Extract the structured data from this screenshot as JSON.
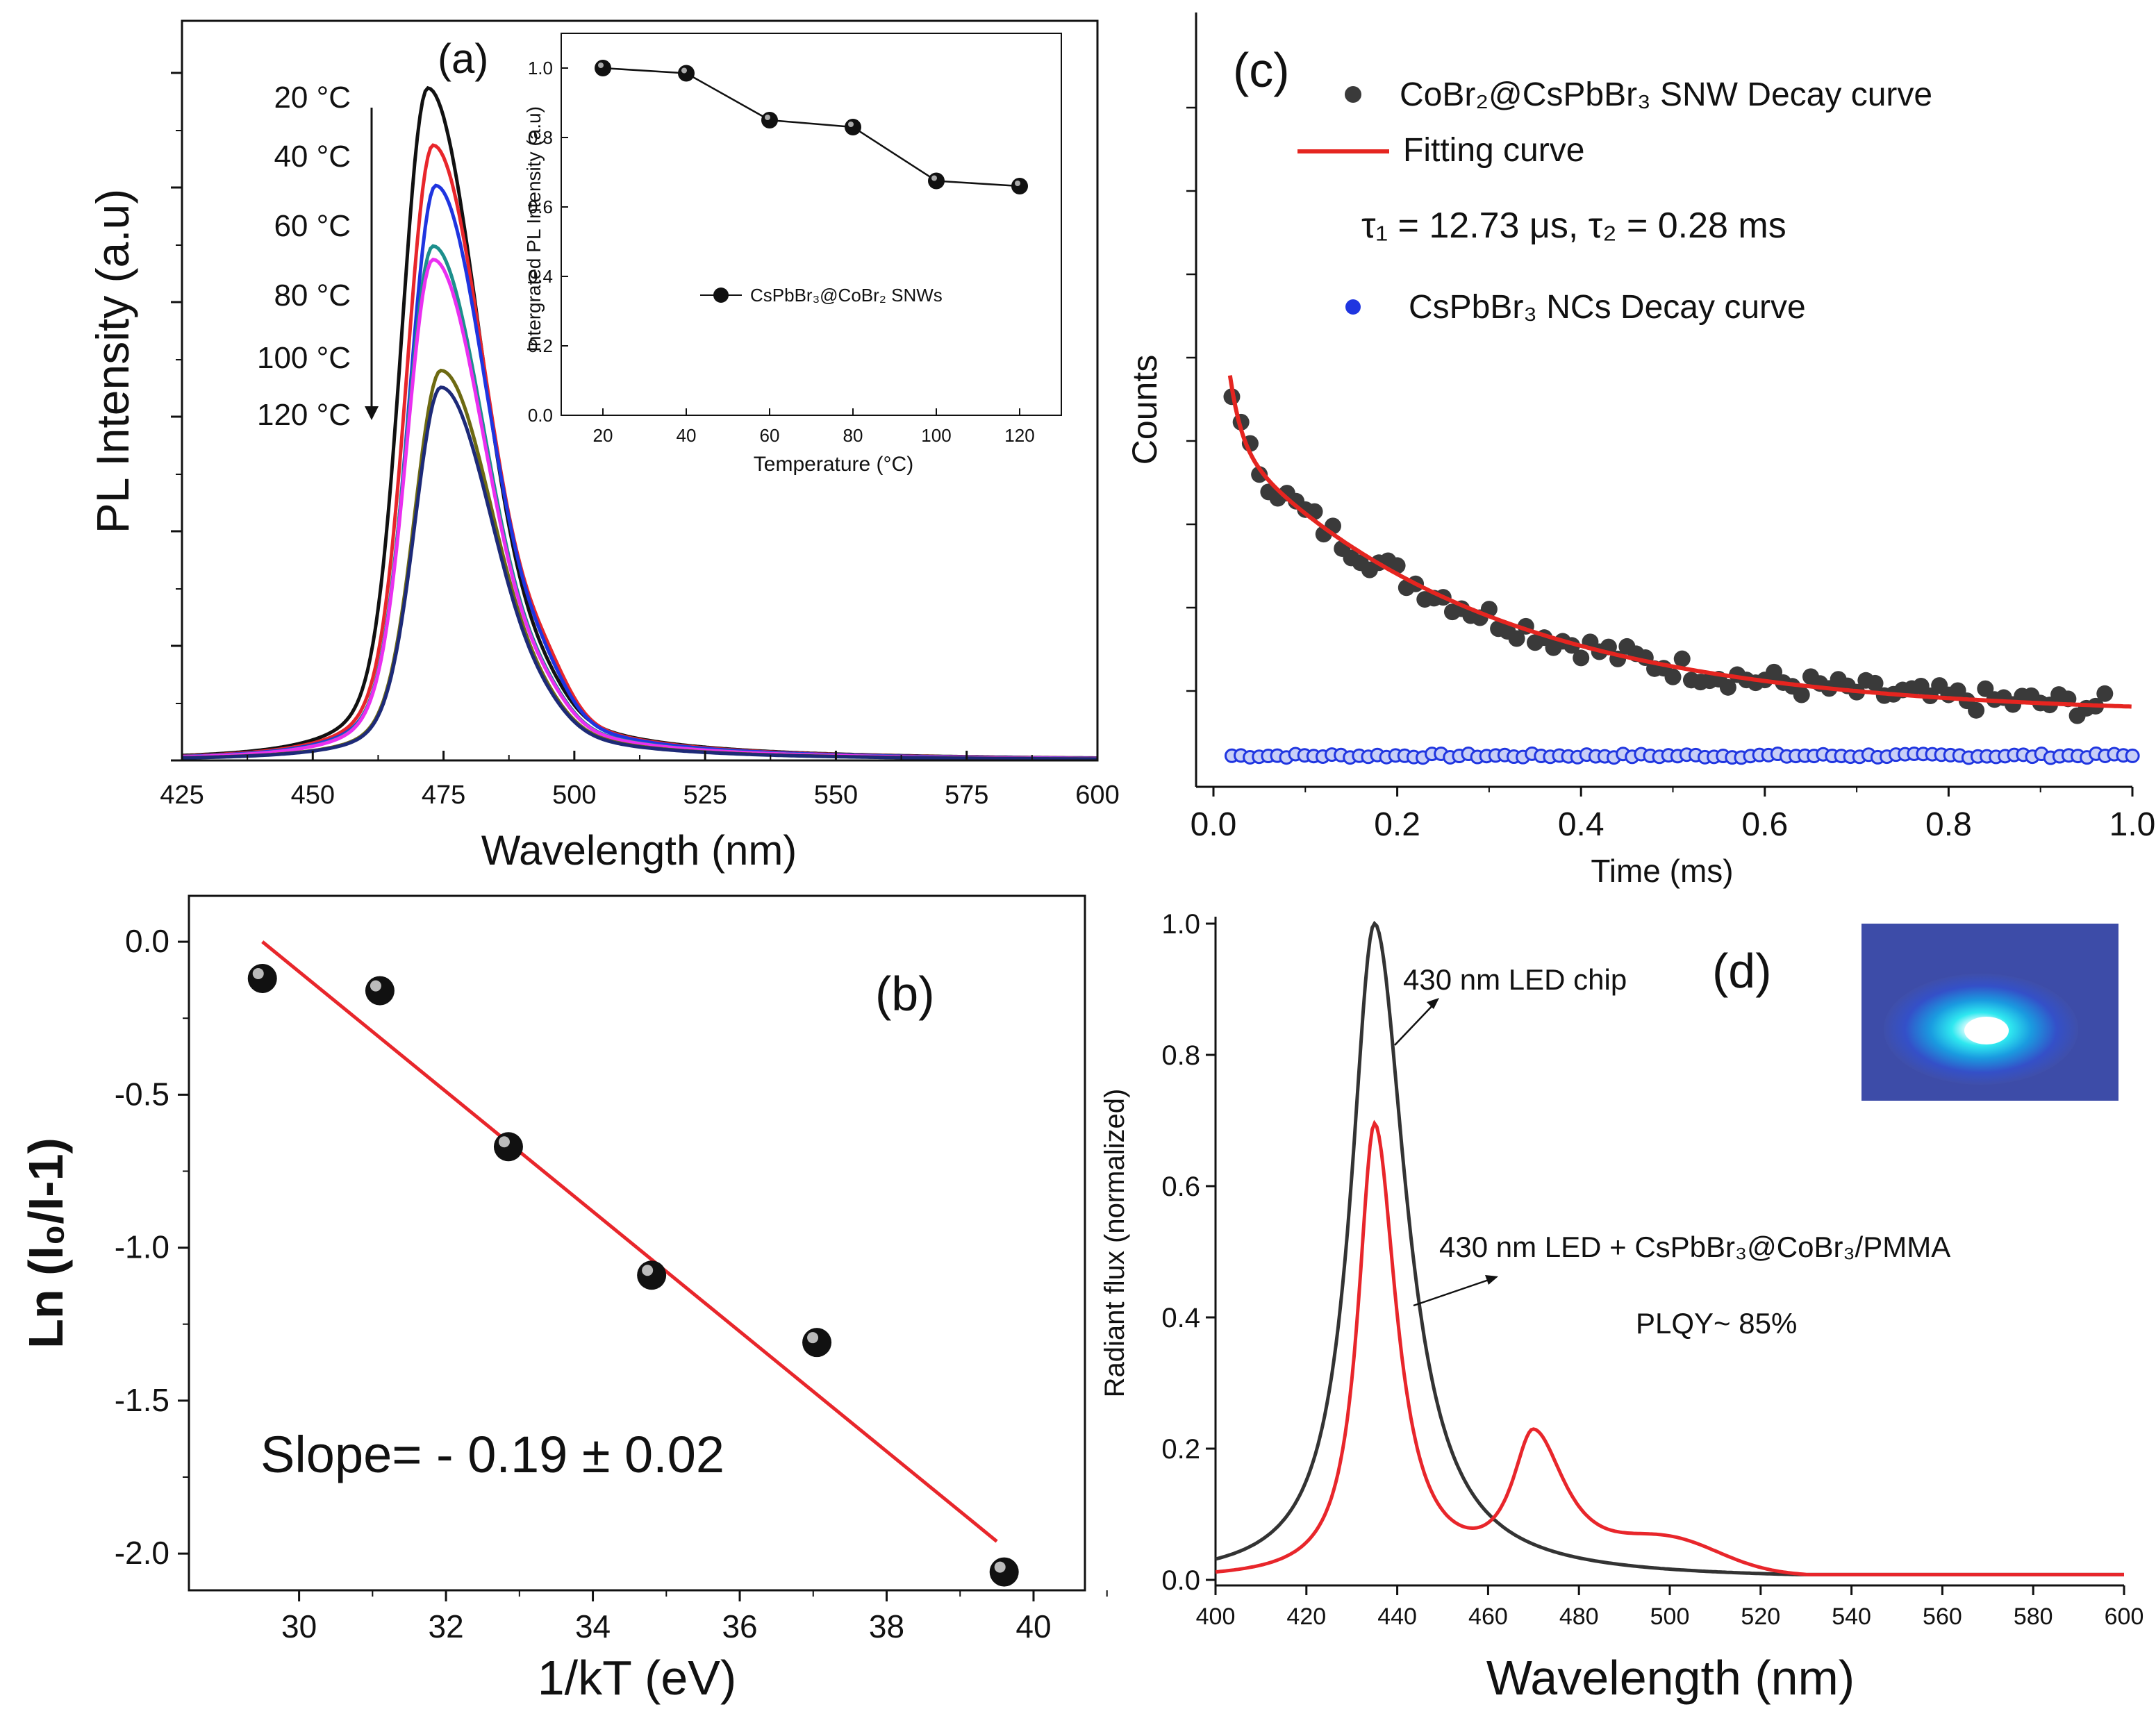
{
  "colors": {
    "black": "#111111",
    "red": "#e8262b",
    "blue": "#1f35e0",
    "cyan": "#1c8f8c",
    "magenta": "#ea2ff0",
    "olive": "#6d6a12",
    "navy": "#1d2a78",
    "gray": "#3a3a3a",
    "fit": "#e52520",
    "led": "#333333"
  },
  "chart_data": [
    {
      "id": "a",
      "type": "line",
      "panel_label": "(a)",
      "xlabel": "Wavelength (nm)",
      "ylabel": "PL Intensity (a.u)",
      "xlim": [
        425,
        600
      ],
      "ylim": [
        0,
        1.1
      ],
      "xticks": [
        "425",
        "450",
        "475",
        "500",
        "525",
        "550",
        "575",
        "600"
      ],
      "legend_labels": [
        "20 °C",
        "40 °C",
        "60 °C",
        "80 °C",
        "100 °C",
        "120 °C"
      ],
      "series": [
        {
          "name": "20 °C",
          "color": "black",
          "peak": 472,
          "amp": 1.0,
          "shoulder": 0.02
        },
        {
          "name": "40 °C",
          "color": "red",
          "peak": 473,
          "amp": 0.915,
          "shoulder": 0.04
        },
        {
          "name": "60 °C",
          "color": "blue",
          "peak": 473.5,
          "amp": 0.855,
          "shoulder": 0.03
        },
        {
          "name": "80 °C (a)",
          "color": "cyan",
          "peak": 473,
          "amp": 0.765,
          "shoulder": 0.02
        },
        {
          "name": "80 °C (b)",
          "color": "magenta",
          "peak": 473,
          "amp": 0.745,
          "shoulder": 0.02
        },
        {
          "name": "100 °C",
          "color": "olive",
          "peak": 474.5,
          "amp": 0.58,
          "shoulder": 0.01
        },
        {
          "name": "120 °C",
          "color": "navy",
          "peak": 474.5,
          "amp": 0.555,
          "shoulder": 0.01
        }
      ],
      "inset": {
        "type": "line",
        "xlabel": "Temperature (°C)",
        "ylabel": "Intergrated PL Intensity (a.u)",
        "legend": "CsPbBr₃@CoBr₂ SNWs",
        "xlim": [
          10,
          130
        ],
        "ylim": [
          0,
          1.1
        ],
        "xticks": [
          "20",
          "40",
          "60",
          "80",
          "100",
          "120"
        ],
        "yticks": [
          "0.0",
          "0.2",
          "0.4",
          "0.6",
          "0.8",
          "1.0"
        ],
        "x": [
          20,
          40,
          60,
          80,
          100,
          120
        ],
        "y": [
          1.0,
          0.985,
          0.85,
          0.83,
          0.675,
          0.66
        ]
      }
    },
    {
      "id": "b",
      "type": "scatter",
      "panel_label": "(b)",
      "xlabel": "1/kT (eV)",
      "ylabel": "Ln (I₀/I-1)",
      "xlim": [
        28.5,
        40.7
      ],
      "ylim": [
        -2.12,
        0.15
      ],
      "xticks": [
        "30",
        "32",
        "34",
        "36",
        "38",
        "40"
      ],
      "yticks": [
        "0.0",
        "-0.5",
        "-1.0",
        "-1.5",
        "-2.0"
      ],
      "x": [
        29.5,
        31.1,
        32.85,
        34.8,
        37.05,
        39.6
      ],
      "y": [
        -0.12,
        -0.16,
        -0.67,
        -1.09,
        -1.31,
        -2.06
      ],
      "fit": {
        "x": [
          29.5,
          39.5
        ],
        "y": [
          0.0,
          -1.96
        ]
      },
      "annotation": "Slope= - 0.19 ± 0.02"
    },
    {
      "id": "c",
      "type": "scatter",
      "panel_label": "(c)",
      "xlabel": "Time (ms)",
      "ylabel": "Counts",
      "xlim": [
        0,
        1.0
      ],
      "ylim": [
        0,
        1.0
      ],
      "xticks": [
        "0.0",
        "0.2",
        "0.4",
        "0.6",
        "0.8",
        "1.0"
      ],
      "legend": [
        "CoBr₂@CsPbBr₃ SNW Decay curve",
        "Fitting curve",
        "τ₁ = 12.73 μs,  τ₂ = 0.28 ms",
        "CsPbBr₃ NCs Decay curve"
      ],
      "fit_params": {
        "a1": 0.42,
        "tau1": 0.01273,
        "a2": 0.42,
        "tau2": 0.28,
        "offset": 0.075
      },
      "noise_amplitude": 0.012,
      "blue_level": 0.015,
      "points": 96
    },
    {
      "id": "d",
      "type": "line",
      "panel_label": "(d)",
      "xlabel": "Wavelength (nm)",
      "ylabel": "Radiant flux (normalized)",
      "xlim": [
        400,
        600
      ],
      "ylim": [
        0,
        1.0
      ],
      "xticks": [
        "400",
        "420",
        "440",
        "460",
        "480",
        "500",
        "520",
        "540",
        "560",
        "580",
        "600"
      ],
      "yticks": [
        "0.0",
        "0.2",
        "0.4",
        "0.6",
        "0.8",
        "1.0"
      ],
      "series": [
        {
          "name": "430 nm LED chip",
          "color": "led",
          "center": 435,
          "amp": 1.0,
          "width": 7.5
        },
        {
          "name": "430 nm  LED + CsPbBr₃@CoBr₃/PMMA",
          "color": "red",
          "center": 435,
          "amp": 0.69,
          "width": 5.2,
          "second_peak": {
            "center": 470,
            "amp": 0.21
          }
        }
      ],
      "annotations": [
        "430 nm LED chip",
        "430 nm  LED + CsPbBr₃@CoBr₃/PMMA",
        "PLQY~ 85%"
      ]
    }
  ]
}
